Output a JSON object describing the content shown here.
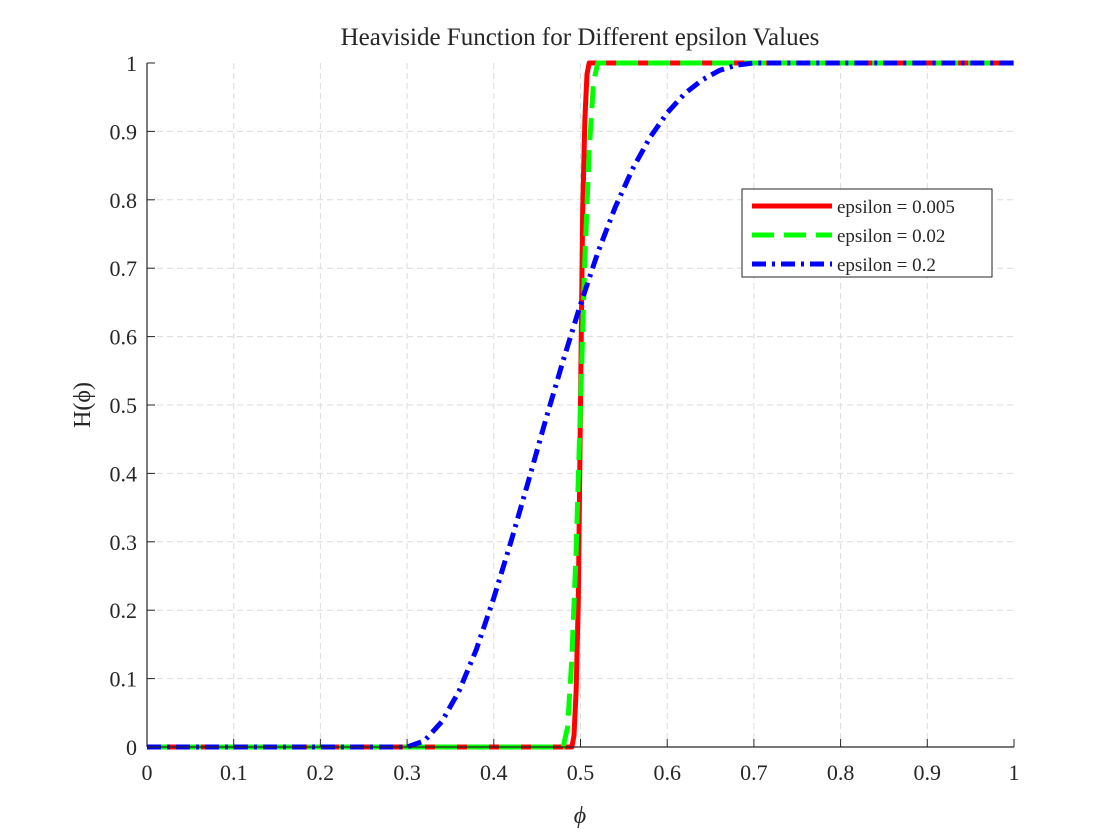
{
  "chart_data": {
    "type": "line",
    "title": "Heaviside Function for Different epsilon Values",
    "xlabel": "ϕ",
    "ylabel": "H(ϕ)",
    "xlim": [
      0,
      1
    ],
    "ylim": [
      0,
      1
    ],
    "xticks": [
      0,
      0.1,
      0.2,
      0.3,
      0.4,
      0.5,
      0.6,
      0.7,
      0.8,
      0.9,
      1
    ],
    "xtick_labels": [
      "0",
      "0.1",
      "0.2",
      "0.3",
      "0.4",
      "0.5",
      "0.6",
      "0.7",
      "0.8",
      "0.9",
      "1"
    ],
    "yticks": [
      0,
      0.1,
      0.2,
      0.3,
      0.4,
      0.5,
      0.6,
      0.7,
      0.8,
      0.9,
      1
    ],
    "ytick_labels": [
      "0",
      "0.1",
      "0.2",
      "0.3",
      "0.4",
      "0.5",
      "0.6",
      "0.7",
      "0.8",
      "0.9",
      "1"
    ],
    "grid": true,
    "legend_position": "top-right",
    "series": [
      {
        "name": "epsilon = 0.005",
        "color": "#ff0000",
        "style": "solid",
        "x": [
          0,
          0.49,
          0.4925,
          0.495,
          0.4975,
          0.5,
          0.5025,
          0.505,
          0.5075,
          0.51,
          1
        ],
        "y": [
          0,
          0,
          0.0165,
          0.0833,
          0.2165,
          0.5,
          0.7835,
          0.9167,
          0.9835,
          1,
          1
        ]
      },
      {
        "name": "epsilon = 0.02",
        "color": "#00ff00",
        "style": "dashed",
        "x": [
          0,
          0.48,
          0.485,
          0.49,
          0.495,
          0.5,
          0.505,
          0.51,
          0.515,
          0.52,
          1
        ],
        "y": [
          0,
          0,
          0.028,
          0.129,
          0.287,
          0.5,
          0.713,
          0.871,
          0.972,
          1,
          1
        ]
      },
      {
        "name": "epsilon = 0.2",
        "color": "#0000ff",
        "style": "dashdot",
        "x": [
          0,
          0.3,
          0.32,
          0.34,
          0.36,
          0.38,
          0.4,
          0.42,
          0.44,
          0.46,
          0.48,
          0.5,
          0.52,
          0.54,
          0.56,
          0.58,
          0.6,
          0.62,
          0.64,
          0.66,
          0.68,
          0.7,
          1
        ],
        "y": [
          0,
          0,
          0.009,
          0.037,
          0.082,
          0.143,
          0.218,
          0.301,
          0.389,
          0.479,
          0.565,
          0.647,
          0.723,
          0.789,
          0.845,
          0.891,
          0.927,
          0.955,
          0.975,
          0.989,
          0.997,
          1,
          1
        ]
      }
    ]
  }
}
